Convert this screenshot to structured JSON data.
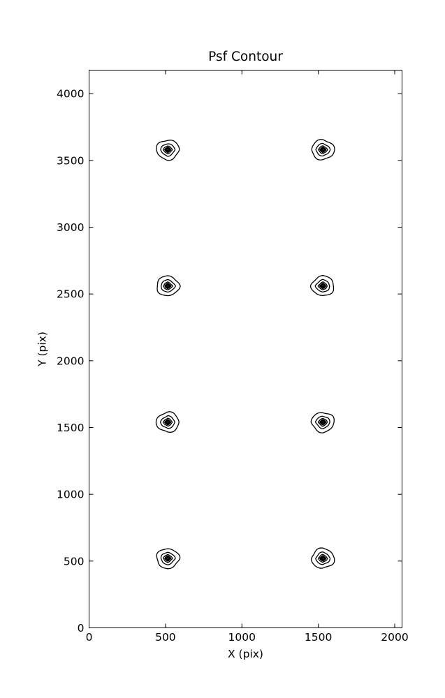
{
  "figure": {
    "background": "#ffffff",
    "foreground": "#000000"
  },
  "chart_data": {
    "type": "contour",
    "title": "Psf Contour",
    "xlabel": "X (pix)",
    "ylabel": "Y (pix)",
    "xlim": [
      0,
      2048
    ],
    "ylim": [
      0,
      4176
    ],
    "xticks": [
      0,
      500,
      1000,
      1500,
      2000
    ],
    "yticks": [
      0,
      500,
      1000,
      1500,
      2000,
      2500,
      3000,
      3500,
      4000
    ],
    "grid": false,
    "legend": null,
    "tick_direction": "in",
    "contour_color": "#000000",
    "contour_levels": 7,
    "psf_outer_radius_pix": 75,
    "level_radius_fractions": [
      1.0,
      0.63,
      0.4,
      0.275,
      0.195,
      0.135,
      0.085
    ],
    "psf_centers": [
      {
        "x": 515,
        "y": 520
      },
      {
        "x": 1530,
        "y": 520
      },
      {
        "x": 515,
        "y": 1540
      },
      {
        "x": 1530,
        "y": 1540
      },
      {
        "x": 515,
        "y": 2560
      },
      {
        "x": 1530,
        "y": 2560
      },
      {
        "x": 515,
        "y": 3580
      },
      {
        "x": 1530,
        "y": 3580
      }
    ]
  }
}
